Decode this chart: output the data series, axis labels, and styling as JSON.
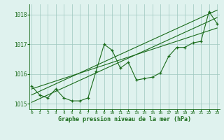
{
  "hours": [
    0,
    1,
    2,
    3,
    4,
    5,
    6,
    7,
    8,
    9,
    10,
    11,
    12,
    13,
    14,
    15,
    16,
    17,
    18,
    19,
    20,
    21,
    22,
    23
  ],
  "pressure": [
    1015.6,
    1015.3,
    1015.2,
    1015.5,
    1015.2,
    1015.1,
    1015.1,
    1015.2,
    1016.1,
    1017.0,
    1016.8,
    1016.2,
    1016.4,
    1015.8,
    1015.85,
    1015.9,
    1016.05,
    1016.6,
    1016.9,
    1016.9,
    1017.05,
    1017.1,
    1018.1,
    1017.7
  ],
  "trend_x": [
    0,
    23
  ],
  "trend_lines": [
    [
      1015.05,
      1017.9
    ],
    [
      1015.3,
      1018.15
    ],
    [
      1015.5,
      1017.55
    ]
  ],
  "ylim": [
    1014.82,
    1018.35
  ],
  "yticks": [
    1015,
    1016,
    1017,
    1018
  ],
  "xticks": [
    0,
    1,
    2,
    3,
    4,
    5,
    6,
    7,
    8,
    9,
    10,
    11,
    12,
    13,
    14,
    15,
    16,
    17,
    18,
    19,
    20,
    21,
    22,
    23
  ],
  "xlabel": "Graphe pression niveau de la mer (hPa)",
  "line_color": "#1a6b1a",
  "bg_color": "#dff2ee",
  "grid_color": "#9ec8c0",
  "marker": "+",
  "figsize": [
    3.2,
    2.0
  ],
  "dpi": 100
}
